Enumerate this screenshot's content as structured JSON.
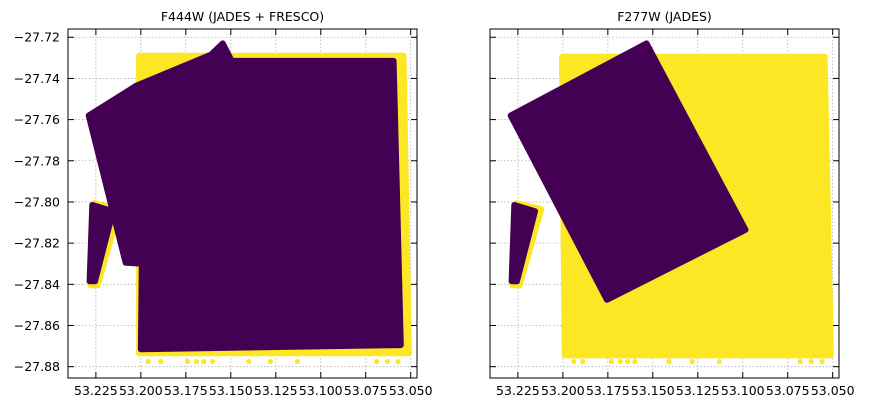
{
  "colors": {
    "inside": "#440154",
    "outside": "#fde725"
  },
  "chart_data": [
    {
      "type": "scatter",
      "title": "F444W (JADES + FRESCO)",
      "xlabel": "",
      "ylabel": "",
      "xlim": [
        53.2405,
        53.0465
      ],
      "ylim": [
        -27.8855,
        -27.716
      ],
      "xticks": [
        53.225,
        53.2,
        53.175,
        53.15,
        53.125,
        53.1,
        53.075,
        53.05
      ],
      "xtick_labels": [
        "53.225",
        "53.200",
        "53.175",
        "53.150",
        "53.125",
        "53.100",
        "53.075",
        "53.050"
      ],
      "yticks": [
        -27.72,
        -27.74,
        -27.76,
        -27.78,
        -27.8,
        -27.82,
        -27.84,
        -27.86,
        -27.88
      ],
      "ytick_labels": [
        "−27.72",
        "−27.74",
        "−27.76",
        "−27.78",
        "−27.80",
        "−27.82",
        "−27.84",
        "−27.86",
        "−27.88"
      ],
      "grid": true,
      "series": [
        {
          "color": "#fde725",
          "regions": [
            [
              [
                53.201,
                -27.729
              ],
              [
                53.054,
                -27.729
              ],
              [
                53.051,
                -27.8735
              ],
              [
                53.201,
                -27.8735
              ]
            ],
            [
              [
                53.226,
                -27.8005
              ],
              [
                53.212,
                -27.8035
              ],
              [
                53.224,
                -27.8405
              ],
              [
                53.228,
                -27.8405
              ]
            ]
          ],
          "points": [
            [
              53.196,
              -27.8775
            ],
            [
              53.189,
              -27.8775
            ],
            [
              53.174,
              -27.8775
            ],
            [
              53.169,
              -27.8775
            ],
            [
              53.165,
              -27.8775
            ],
            [
              53.16,
              -27.8775
            ],
            [
              53.14,
              -27.8775
            ],
            [
              53.128,
              -27.8775
            ],
            [
              53.113,
              -27.8775
            ],
            [
              53.069,
              -27.8775
            ],
            [
              53.063,
              -27.8775
            ],
            [
              53.057,
              -27.8775
            ]
          ]
        },
        {
          "color": "#440154",
          "regions": [
            [
              [
                53.229,
                -27.758
              ],
              [
                53.2025,
                -27.7435
              ],
              [
                53.161,
                -27.7285
              ],
              [
                53.1545,
                -27.723
              ],
              [
                53.1495,
                -27.7315
              ],
              [
                53.0595,
                -27.7315
              ],
              [
                53.0555,
                -27.8695
              ],
              [
                53.2,
                -27.8715
              ],
              [
                53.1995,
                -27.83
              ],
              [
                53.2085,
                -27.8295
              ]
            ],
            [
              [
                53.227,
                -27.8015
              ],
              [
                53.2155,
                -27.8045
              ],
              [
                53.2255,
                -27.8385
              ],
              [
                53.2285,
                -27.8385
              ]
            ]
          ],
          "points": []
        }
      ]
    },
    {
      "type": "scatter",
      "title": "F277W (JADES)",
      "xlabel": "",
      "ylabel": "",
      "xlim": [
        53.2405,
        53.0465
      ],
      "ylim": [
        -27.8855,
        -27.716
      ],
      "xticks": [
        53.225,
        53.2,
        53.175,
        53.15,
        53.125,
        53.1,
        53.075,
        53.05
      ],
      "xtick_labels": [
        "53.225",
        "53.200",
        "53.175",
        "53.150",
        "53.125",
        "53.100",
        "53.075",
        "53.050"
      ],
      "yticks": [
        -27.72,
        -27.74,
        -27.76,
        -27.78,
        -27.8,
        -27.82,
        -27.84,
        -27.86,
        -27.88
      ],
      "ytick_labels": [],
      "grid": true,
      "series": [
        {
          "color": "#fde725",
          "regions": [
            [
              [
                53.2005,
                -27.7295
              ],
              [
                53.0545,
                -27.7295
              ],
              [
                53.051,
                -27.8745
              ],
              [
                53.199,
                -27.8745
              ]
            ],
            [
              [
                53.226,
                -27.8005
              ],
              [
                53.212,
                -27.8035
              ],
              [
                53.224,
                -27.8405
              ],
              [
                53.228,
                -27.8405
              ]
            ]
          ],
          "points": [
            [
              53.194,
              -27.8775
            ],
            [
              53.189,
              -27.8775
            ],
            [
              53.173,
              -27.8775
            ],
            [
              53.168,
              -27.8775
            ],
            [
              53.164,
              -27.8775
            ],
            [
              53.16,
              -27.8775
            ],
            [
              53.141,
              -27.8775
            ],
            [
              53.128,
              -27.8775
            ],
            [
              53.113,
              -27.8775
            ],
            [
              53.068,
              -27.8775
            ],
            [
              53.062,
              -27.8775
            ],
            [
              53.056,
              -27.8775
            ]
          ]
        },
        {
          "color": "#440154",
          "regions": [
            [
              [
                53.229,
                -27.758
              ],
              [
                53.1535,
                -27.723
              ],
              [
                53.0985,
                -27.8135
              ],
              [
                53.1755,
                -27.8475
              ]
            ],
            [
              [
                53.227,
                -27.8015
              ],
              [
                53.2155,
                -27.8045
              ],
              [
                53.2255,
                -27.8385
              ],
              [
                53.2285,
                -27.8385
              ]
            ]
          ],
          "points": []
        }
      ]
    }
  ]
}
